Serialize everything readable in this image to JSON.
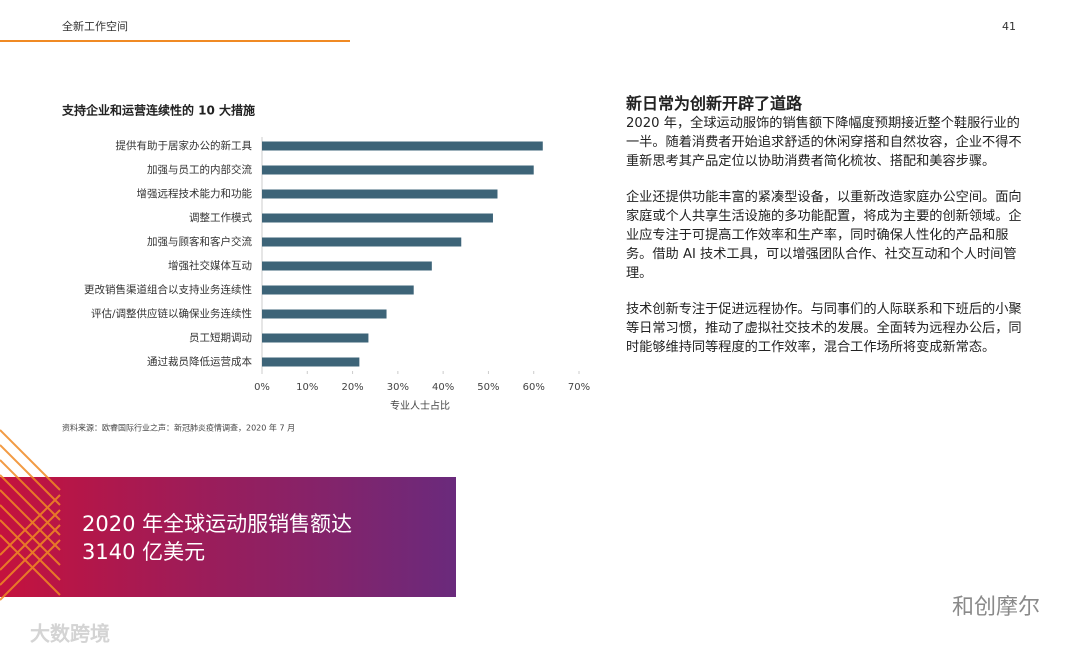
{
  "header": {
    "section": "全新工作空间",
    "page_number": "41"
  },
  "chart_data": {
    "type": "hbar",
    "title": "支持企业和运营连续性的 10 大措施",
    "categories": [
      "提供有助于居家办公的新工具",
      "加强与员工的内部交流",
      "增强远程技术能力和功能",
      "调整工作模式",
      "加强与顾客和客户交流",
      "增强社交媒体互动",
      "更改销售渠道组合以支持业务连续性",
      "评估/调整供应链以确保业务连续性",
      "员工短期调动",
      "通过裁员降低运营成本"
    ],
    "values": [
      62,
      60,
      52,
      51,
      44,
      37.5,
      33.5,
      27.5,
      23.5,
      21.5
    ],
    "color": "#3d6478",
    "xlim": [
      0,
      70
    ],
    "xticks": [
      {
        "value": 0,
        "label": "0%"
      },
      {
        "value": 10,
        "label": "10%"
      },
      {
        "value": 20,
        "label": "20%"
      },
      {
        "value": 30,
        "label": "30%"
      },
      {
        "value": 40,
        "label": "40%"
      },
      {
        "value": 50,
        "label": "50%"
      },
      {
        "value": 60,
        "label": "60%"
      },
      {
        "value": 70,
        "label": "70%"
      }
    ],
    "x_label": "专业人士占比",
    "source": "资料来源：欧睿国际行业之声：新冠肺炎疫情调查，2020 年 7 月"
  },
  "article": {
    "heading": "新日常为创新开辟了道路",
    "paragraphs": [
      "2020 年，全球运动服饰的销售额下降幅度预期接近整个鞋服行业的一半。随着消费者开始追求舒适的休闲穿搭和自然妆容，企业不得不重新思考其产品定位以协助消费者简化梳妆、搭配和美容步骤。",
      "企业还提供功能丰富的紧凑型设备，以重新改造家庭办公空间。面向家庭或个人共享生活设施的多功能配置，将成为主要的创新领域。企业应专注于可提高工作效率和生产率，同时确保人性化的产品和服务。借助 AI 技术工具，可以增强团队合作、社交互动和个人时间管理。",
      "技术创新专注于促进远程协作。与同事们的人际联系和下班后的小聚等日常习惯，推动了虚拟社交技术的发展。全面转为远程办公后，同时能够维持同等程度的工作效率，混合工作场所将变成新常态。"
    ]
  },
  "banner": {
    "lines": [
      "2020 年全球运动服销售额达",
      "3140 亿美元"
    ]
  },
  "watermarks": {
    "left": "大数跨境",
    "right": "和创摩尔"
  }
}
